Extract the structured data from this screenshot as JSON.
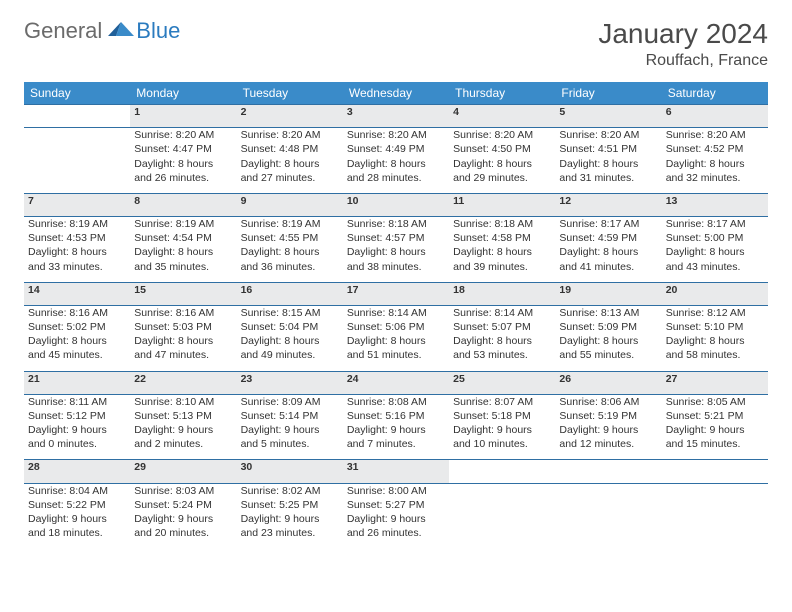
{
  "logo": {
    "general": "General",
    "blue": "Blue"
  },
  "title": "January 2024",
  "location": "Rouffach, France",
  "colors": {
    "header_bg": "#3a8bc9",
    "header_text": "#ffffff",
    "daynum_bg": "#e9eaeb",
    "rule": "#2f6fa3",
    "text": "#333333"
  },
  "weekdays": [
    "Sunday",
    "Monday",
    "Tuesday",
    "Wednesday",
    "Thursday",
    "Friday",
    "Saturday"
  ],
  "weeks": [
    {
      "days": [
        null,
        {
          "n": "1",
          "sunrise": "8:20 AM",
          "sunset": "4:47 PM",
          "daylight": "8 hours and 26 minutes."
        },
        {
          "n": "2",
          "sunrise": "8:20 AM",
          "sunset": "4:48 PM",
          "daylight": "8 hours and 27 minutes."
        },
        {
          "n": "3",
          "sunrise": "8:20 AM",
          "sunset": "4:49 PM",
          "daylight": "8 hours and 28 minutes."
        },
        {
          "n": "4",
          "sunrise": "8:20 AM",
          "sunset": "4:50 PM",
          "daylight": "8 hours and 29 minutes."
        },
        {
          "n": "5",
          "sunrise": "8:20 AM",
          "sunset": "4:51 PM",
          "daylight": "8 hours and 31 minutes."
        },
        {
          "n": "6",
          "sunrise": "8:20 AM",
          "sunset": "4:52 PM",
          "daylight": "8 hours and 32 minutes."
        }
      ]
    },
    {
      "days": [
        {
          "n": "7",
          "sunrise": "8:19 AM",
          "sunset": "4:53 PM",
          "daylight": "8 hours and 33 minutes."
        },
        {
          "n": "8",
          "sunrise": "8:19 AM",
          "sunset": "4:54 PM",
          "daylight": "8 hours and 35 minutes."
        },
        {
          "n": "9",
          "sunrise": "8:19 AM",
          "sunset": "4:55 PM",
          "daylight": "8 hours and 36 minutes."
        },
        {
          "n": "10",
          "sunrise": "8:18 AM",
          "sunset": "4:57 PM",
          "daylight": "8 hours and 38 minutes."
        },
        {
          "n": "11",
          "sunrise": "8:18 AM",
          "sunset": "4:58 PM",
          "daylight": "8 hours and 39 minutes."
        },
        {
          "n": "12",
          "sunrise": "8:17 AM",
          "sunset": "4:59 PM",
          "daylight": "8 hours and 41 minutes."
        },
        {
          "n": "13",
          "sunrise": "8:17 AM",
          "sunset": "5:00 PM",
          "daylight": "8 hours and 43 minutes."
        }
      ]
    },
    {
      "days": [
        {
          "n": "14",
          "sunrise": "8:16 AM",
          "sunset": "5:02 PM",
          "daylight": "8 hours and 45 minutes."
        },
        {
          "n": "15",
          "sunrise": "8:16 AM",
          "sunset": "5:03 PM",
          "daylight": "8 hours and 47 minutes."
        },
        {
          "n": "16",
          "sunrise": "8:15 AM",
          "sunset": "5:04 PM",
          "daylight": "8 hours and 49 minutes."
        },
        {
          "n": "17",
          "sunrise": "8:14 AM",
          "sunset": "5:06 PM",
          "daylight": "8 hours and 51 minutes."
        },
        {
          "n": "18",
          "sunrise": "8:14 AM",
          "sunset": "5:07 PM",
          "daylight": "8 hours and 53 minutes."
        },
        {
          "n": "19",
          "sunrise": "8:13 AM",
          "sunset": "5:09 PM",
          "daylight": "8 hours and 55 minutes."
        },
        {
          "n": "20",
          "sunrise": "8:12 AM",
          "sunset": "5:10 PM",
          "daylight": "8 hours and 58 minutes."
        }
      ]
    },
    {
      "days": [
        {
          "n": "21",
          "sunrise": "8:11 AM",
          "sunset": "5:12 PM",
          "daylight": "9 hours and 0 minutes."
        },
        {
          "n": "22",
          "sunrise": "8:10 AM",
          "sunset": "5:13 PM",
          "daylight": "9 hours and 2 minutes."
        },
        {
          "n": "23",
          "sunrise": "8:09 AM",
          "sunset": "5:14 PM",
          "daylight": "9 hours and 5 minutes."
        },
        {
          "n": "24",
          "sunrise": "8:08 AM",
          "sunset": "5:16 PM",
          "daylight": "9 hours and 7 minutes."
        },
        {
          "n": "25",
          "sunrise": "8:07 AM",
          "sunset": "5:18 PM",
          "daylight": "9 hours and 10 minutes."
        },
        {
          "n": "26",
          "sunrise": "8:06 AM",
          "sunset": "5:19 PM",
          "daylight": "9 hours and 12 minutes."
        },
        {
          "n": "27",
          "sunrise": "8:05 AM",
          "sunset": "5:21 PM",
          "daylight": "9 hours and 15 minutes."
        }
      ]
    },
    {
      "days": [
        {
          "n": "28",
          "sunrise": "8:04 AM",
          "sunset": "5:22 PM",
          "daylight": "9 hours and 18 minutes."
        },
        {
          "n": "29",
          "sunrise": "8:03 AM",
          "sunset": "5:24 PM",
          "daylight": "9 hours and 20 minutes."
        },
        {
          "n": "30",
          "sunrise": "8:02 AM",
          "sunset": "5:25 PM",
          "daylight": "9 hours and 23 minutes."
        },
        {
          "n": "31",
          "sunrise": "8:00 AM",
          "sunset": "5:27 PM",
          "daylight": "9 hours and 26 minutes."
        },
        null,
        null,
        null
      ]
    }
  ],
  "labels": {
    "sunrise": "Sunrise:",
    "sunset": "Sunset:",
    "daylight": "Daylight:"
  }
}
